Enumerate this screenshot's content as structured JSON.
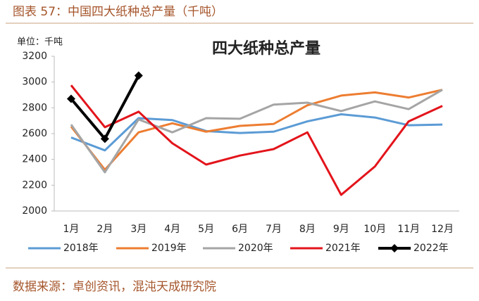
{
  "header": {
    "title": "图表 57：中国四大纸种总产量（千吨）"
  },
  "chart_data": {
    "type": "line",
    "title": "四大纸种总产量",
    "unit": "单位：千吨",
    "categories": [
      "1月",
      "2月",
      "3月",
      "4月",
      "5月",
      "6月",
      "7月",
      "8月",
      "9月",
      "10月",
      "11月",
      "12月"
    ],
    "series": [
      {
        "name": "2018年",
        "color": "#5b9bd5",
        "values": [
          2570,
          2470,
          2720,
          2705,
          2620,
          2605,
          2615,
          2695,
          2750,
          2725,
          2665,
          2670
        ]
      },
      {
        "name": "2019年",
        "color": "#ed7d31",
        "values": [
          2655,
          2320,
          2610,
          2680,
          2615,
          2660,
          2675,
          2820,
          2895,
          2920,
          2880,
          2940
        ]
      },
      {
        "name": "2020年",
        "color": "#a5a5a5",
        "values": [
          2670,
          2300,
          2710,
          2610,
          2720,
          2715,
          2825,
          2840,
          2775,
          2850,
          2790,
          2940
        ]
      },
      {
        "name": "2021年",
        "color": "#e3141b",
        "values": [
          2975,
          2650,
          2770,
          2525,
          2360,
          2430,
          2480,
          2610,
          2125,
          2345,
          2695,
          2815
        ]
      },
      {
        "name": "2022年",
        "color": "#000000",
        "marker": "diamond",
        "values": [
          2870,
          2560,
          3050,
          null,
          null,
          null,
          null,
          null,
          null,
          null,
          null,
          null
        ]
      }
    ],
    "ylim": [
      2000,
      3200
    ],
    "yticks": [
      2000,
      2200,
      2400,
      2600,
      2800,
      3000,
      3200
    ],
    "grid": false
  },
  "footer": {
    "source": "数据来源：卓创资讯，混沌天成研究院"
  }
}
